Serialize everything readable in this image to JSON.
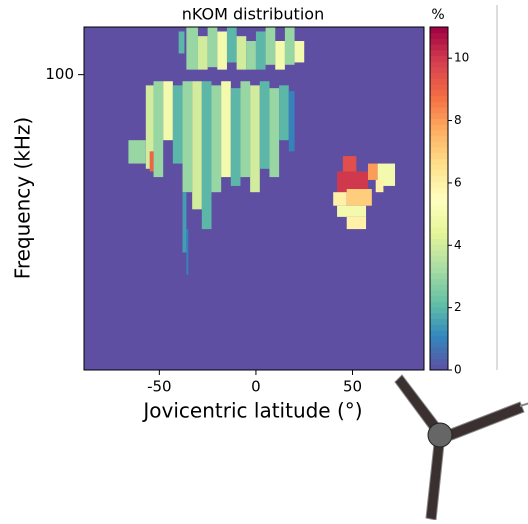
{
  "chart_data": {
    "type": "heatmap",
    "title": "nKOM distribution",
    "x_label": "Jovicentric latitude (°)",
    "y_label": "Frequency (kHz)",
    "xlim": [
      -89,
      87
    ],
    "xticks": [
      -50,
      0,
      50
    ],
    "ylim": [
      10,
      145
    ],
    "yticks": [
      100
    ],
    "ylog": true,
    "colorbar_label": "%",
    "clim": [
      0,
      11
    ],
    "cticks": [
      0,
      2,
      4,
      6,
      8,
      10
    ],
    "colorscale": [
      "#5e4fa2",
      "#3288bd",
      "#66c2a5",
      "#abdda4",
      "#e6f598",
      "#ffffbf",
      "#fee08b",
      "#fdae61",
      "#f46d43",
      "#d53e4f",
      "#9e0142"
    ],
    "cells": [
      [
        -40,
        -37,
        118,
        140,
        2
      ],
      [
        -36,
        -30,
        104,
        145,
        3
      ],
      [
        -30,
        -25,
        104,
        135,
        4
      ],
      [
        -25,
        -20,
        106,
        145,
        3
      ],
      [
        -20,
        -15,
        104,
        140,
        5
      ],
      [
        -15,
        -10,
        110,
        145,
        2
      ],
      [
        -10,
        -5,
        104,
        135,
        4
      ],
      [
        -5,
        0,
        104,
        130,
        3
      ],
      [
        0,
        5,
        104,
        140,
        2
      ],
      [
        5,
        10,
        108,
        145,
        3
      ],
      [
        10,
        15,
        104,
        130,
        5
      ],
      [
        15,
        20,
        108,
        145,
        3
      ],
      [
        20,
        25,
        110,
        130,
        5
      ],
      [
        -57,
        -53,
        48,
        92,
        4
      ],
      [
        -53,
        -48,
        45,
        95,
        3
      ],
      [
        -48,
        -43,
        60,
        95,
        5
      ],
      [
        -43,
        -38,
        50,
        92,
        2
      ],
      [
        -38,
        -33,
        40,
        95,
        3
      ],
      [
        -33,
        -28,
        35,
        95,
        4
      ],
      [
        -28,
        -23,
        30,
        95,
        2
      ],
      [
        -23,
        -18,
        40,
        92,
        3
      ],
      [
        -18,
        -13,
        45,
        95,
        5
      ],
      [
        -13,
        -8,
        42,
        90,
        2
      ],
      [
        -8,
        -3,
        45,
        95,
        3
      ],
      [
        -3,
        2,
        40,
        92,
        4
      ],
      [
        2,
        7,
        48,
        95,
        2
      ],
      [
        7,
        12,
        45,
        90,
        3
      ],
      [
        12,
        17,
        60,
        92,
        2
      ],
      [
        17,
        20,
        55,
        88,
        1
      ],
      [
        -66,
        -57,
        50,
        60,
        3
      ],
      [
        -55,
        -53,
        47,
        55,
        9
      ],
      [
        -38,
        -36,
        25,
        40,
        1.5
      ],
      [
        -36,
        -35,
        21,
        30,
        1
      ],
      [
        42,
        58,
        40,
        47,
        10
      ],
      [
        45,
        52,
        47,
        53,
        9.5
      ],
      [
        58,
        63,
        44,
        50,
        8
      ],
      [
        63,
        72,
        42,
        50,
        5
      ],
      [
        62,
        66,
        40,
        44,
        6
      ],
      [
        40,
        47,
        36,
        40,
        6
      ],
      [
        47,
        60,
        36,
        41,
        7
      ],
      [
        42,
        57,
        33,
        36,
        5
      ],
      [
        47,
        57,
        30,
        33,
        6
      ]
    ]
  }
}
